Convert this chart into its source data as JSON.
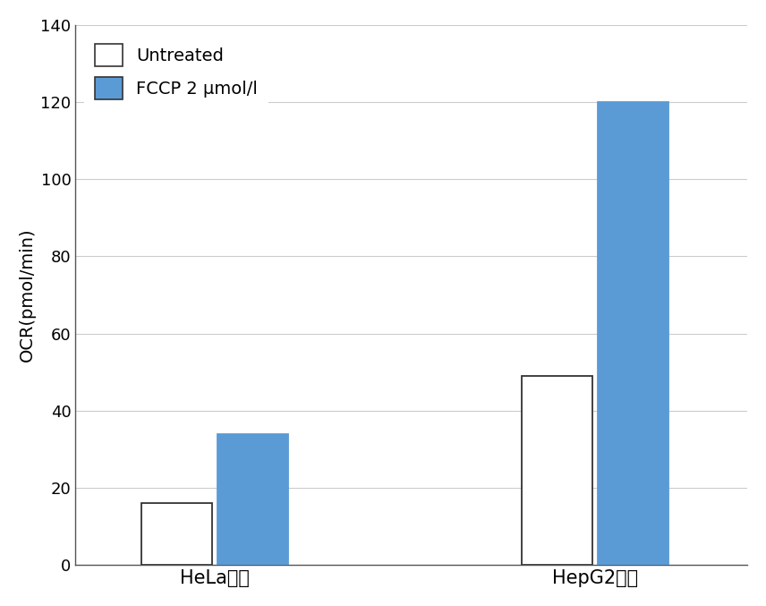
{
  "groups": [
    "HeLa細胞",
    "HepG2細胞"
  ],
  "series": [
    {
      "label": "Untreated",
      "values": [
        16,
        49
      ],
      "color": "#ffffff",
      "edgecolor": "#333333"
    },
    {
      "label": "FCCP 2 μmol/l",
      "values": [
        34,
        120
      ],
      "color": "#5b9bd5",
      "edgecolor": "#5b9bd5"
    }
  ],
  "ylabel": "OCR(pmol/min)",
  "ylim": [
    0,
    140
  ],
  "yticks": [
    0,
    20,
    40,
    60,
    80,
    100,
    120,
    140
  ],
  "bar_width": 0.28,
  "group_centers": [
    1.0,
    2.5
  ],
  "xlim": [
    0.45,
    3.1
  ],
  "background_color": "#ffffff",
  "plot_bg_color": "#ffffff",
  "grid_color": "#cccccc",
  "legend_fontsize": 14,
  "ylabel_fontsize": 14,
  "tick_fontsize": 13,
  "xtick_fontsize": 15,
  "spine_color": "#555555"
}
